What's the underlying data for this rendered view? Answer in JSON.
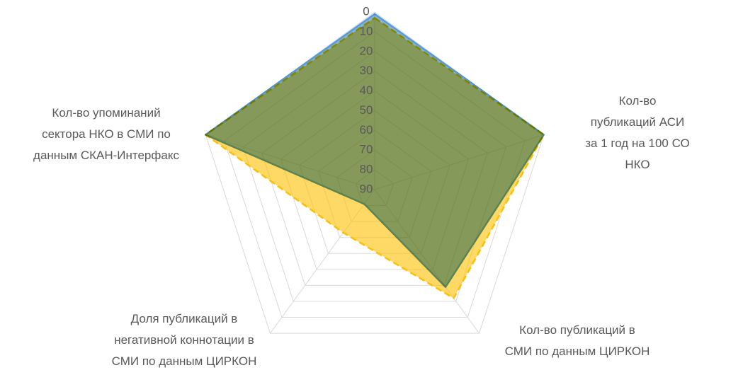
{
  "chart_data": {
    "type": "radar",
    "categories": [
      null,
      "Кол-во публикаций АСИ\nза 1 год на 100 СО НКО",
      "Кол-во публикаций в\nСМИ по данным ЦИРКОН",
      "Доля публикаций в\nнегативной коннотации в\nСМИ по данным ЦИРКОН",
      "Кол-во упоминаний\nсектора НКО в СМИ по\nданным СКАН-Интерфакс"
    ],
    "series": [
      {
        "color": "#ffc000",
        "values": [
          3,
          0,
          22,
          63,
          0
        ]
      },
      {
        "color": "#5b9bd5",
        "values": [
          1,
          0,
          29,
          81,
          0
        ]
      }
    ],
    "ylim": [
      0,
      90
    ],
    "yticks": [
      0,
      10,
      20,
      30,
      40,
      50,
      60,
      70,
      80,
      90
    ],
    "reversed": true,
    "grid": true
  }
}
